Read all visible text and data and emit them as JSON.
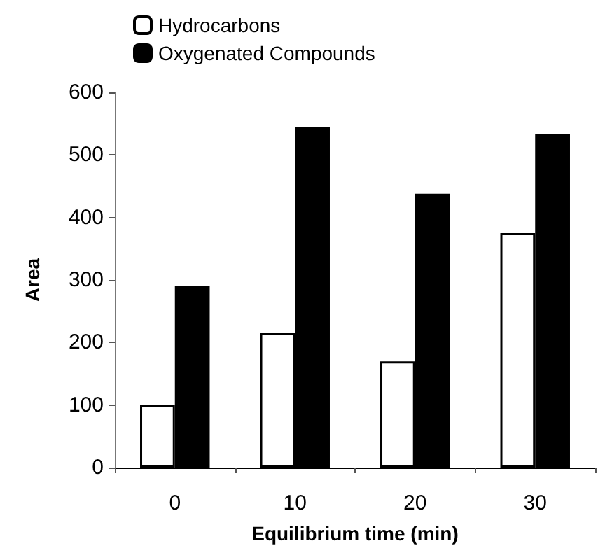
{
  "chart_data": {
    "type": "bar",
    "xlabel": "Equilibrium time (min)",
    "ylabel": "Area",
    "categories": [
      "0",
      "10",
      "20",
      "30"
    ],
    "series": [
      {
        "name": "Hydrocarbons",
        "color": "#ffffff",
        "values": [
          100,
          215,
          170,
          375
        ]
      },
      {
        "name": "Oxygenated Compounds",
        "color": "#000000",
        "values": [
          290,
          545,
          438,
          533
        ]
      }
    ],
    "ylim": [
      0,
      600
    ],
    "yticks": [
      0,
      100,
      200,
      300,
      400,
      500,
      600
    ],
    "grid": false,
    "legend": "top left"
  }
}
